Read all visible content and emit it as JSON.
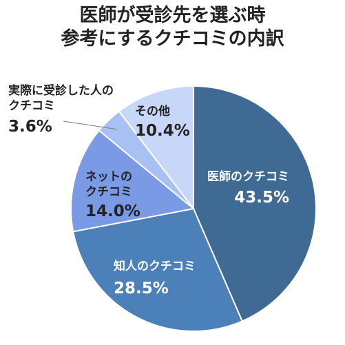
{
  "title": {
    "line1": "医師が受診先を選ぶ時",
    "line2": "参考にするクチコミの内訳"
  },
  "chart_data": {
    "type": "pie",
    "start": "12 o'clock",
    "direction": "clockwise",
    "slices": [
      {
        "label": "医師のクチコミ",
        "value": 43.5,
        "display": "43.5%",
        "color": "#3e6a94",
        "text_color": "#ffffff"
      },
      {
        "label": "知人のクチコミ",
        "value": 28.5,
        "display": "28.5%",
        "color": "#4c80b8",
        "text_color": "#ffffff"
      },
      {
        "label_lines": [
          "ネットの",
          "クチコミ"
        ],
        "value": 14.0,
        "display": "14.0%",
        "color": "#7b9ae6",
        "text_color": "#222222"
      },
      {
        "label_lines": [
          "実際に受診した人の",
          "クチコミ"
        ],
        "value": 3.6,
        "display": "3.6%",
        "color": "#a9c0f2",
        "text_color": "#222222",
        "label_outside": true
      },
      {
        "label": "その他",
        "value": 10.4,
        "display": "10.4%",
        "color": "#c6d7f8",
        "text_color": "#222222"
      }
    ]
  }
}
